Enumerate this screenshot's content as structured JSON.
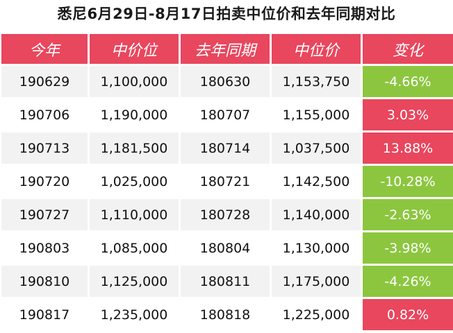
{
  "title": "悉尼6月29日-8月17日拍卖中位价和去年同期对比",
  "columns": [
    "今年",
    "中价位",
    "去年同期",
    "中位价",
    "变化"
  ],
  "colors": {
    "header_bg": "#e8475e",
    "increase_bg": "#e8475e",
    "decrease_bg": "#8cc63f",
    "stripe_bg": "#f2f2f2"
  },
  "rows": [
    {
      "this_year": "190629",
      "this_median": "1,100,000",
      "last_year": "180630",
      "last_median": "1,153,750",
      "change": "-4.66%",
      "direction": "down"
    },
    {
      "this_year": "190706",
      "this_median": "1,190,000",
      "last_year": "180707",
      "last_median": "1,155,000",
      "change": "3.03%",
      "direction": "up"
    },
    {
      "this_year": "190713",
      "this_median": "1,181,500",
      "last_year": "180714",
      "last_median": "1,037,500",
      "change": "13.88%",
      "direction": "up"
    },
    {
      "this_year": "190720",
      "this_median": "1,025,000",
      "last_year": "180721",
      "last_median": "1,142,500",
      "change": "-10.28%",
      "direction": "down"
    },
    {
      "this_year": "190727",
      "this_median": "1,110,000",
      "last_year": "180728",
      "last_median": "1,140,000",
      "change": "-2.63%",
      "direction": "down"
    },
    {
      "this_year": "190803",
      "this_median": "1,085,000",
      "last_year": "180804",
      "last_median": "1,130,000",
      "change": "-3.98%",
      "direction": "down"
    },
    {
      "this_year": "190810",
      "this_median": "1,125,000",
      "last_year": "180811",
      "last_median": "1,175,000",
      "change": "-4.26%",
      "direction": "down"
    },
    {
      "this_year": "190817",
      "this_median": "1,235,000",
      "last_year": "180818",
      "last_median": "1,225,000",
      "change": "0.82%",
      "direction": "up"
    }
  ]
}
